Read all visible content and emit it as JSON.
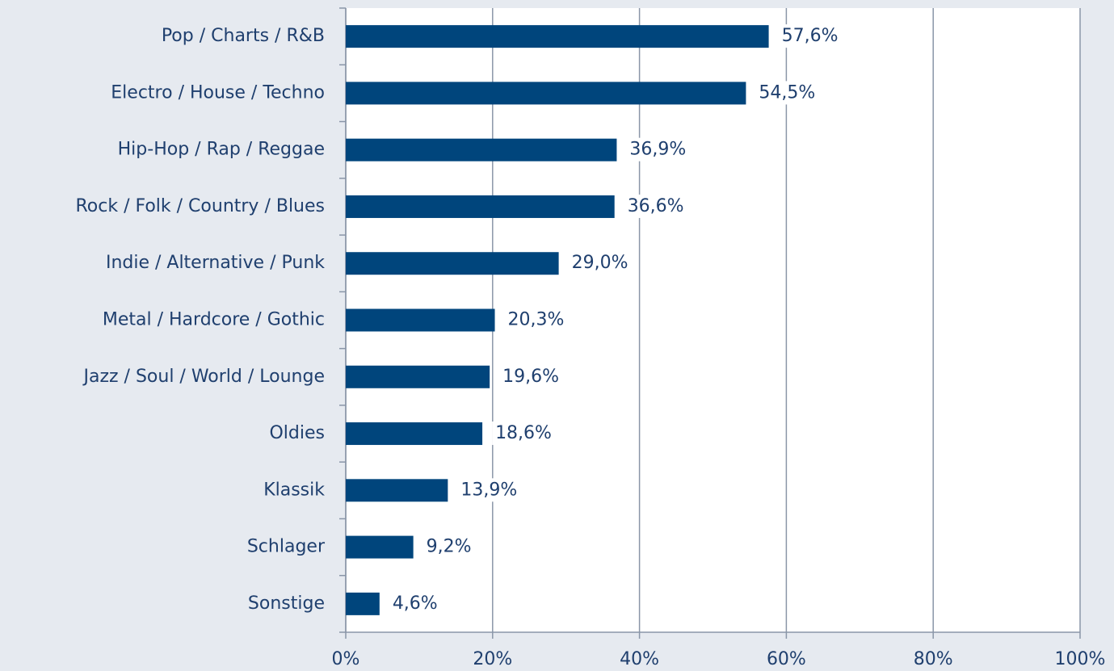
{
  "chart_data": {
    "type": "bar",
    "orientation": "horizontal",
    "categories": [
      "Pop / Charts / R&B",
      "Electro / House / Techno",
      "Hip-Hop / Rap / Reggae",
      "Rock / Folk / Country / Blues",
      "Indie / Alternative / Punk",
      "Metal / Hardcore / Gothic",
      "Jazz / Soul / World / Lounge",
      "Oldies",
      "Klassik",
      "Schlager",
      "Sonstige"
    ],
    "values": [
      57.6,
      54.5,
      36.9,
      36.6,
      29.0,
      20.3,
      19.6,
      18.6,
      13.9,
      9.2,
      4.6
    ],
    "value_labels": [
      "57,6%",
      "54,5%",
      "36,9%",
      "36,6%",
      "29,0%",
      "20,3%",
      "19,6%",
      "18,6%",
      "13,9%",
      "9,2%",
      "4,6%"
    ],
    "color": "#00457c",
    "xlim": [
      0,
      100
    ],
    "xticks": [
      {
        "value": 0,
        "label": "0%"
      },
      {
        "value": 20,
        "label": "20%"
      },
      {
        "value": 40,
        "label": "40%"
      },
      {
        "value": 60,
        "label": "60%"
      },
      {
        "value": 80,
        "label": "80%"
      },
      {
        "value": 100,
        "label": "100%"
      }
    ],
    "grid": true
  }
}
